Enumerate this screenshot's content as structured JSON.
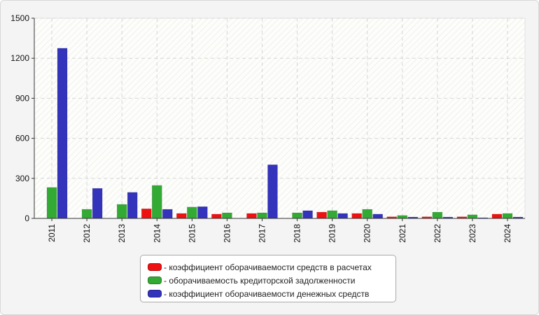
{
  "chart_data": {
    "type": "bar",
    "categories": [
      "2011",
      "2012",
      "2013",
      "2014",
      "2015",
      "2016",
      "2017",
      "2018",
      "2019",
      "2020",
      "2021",
      "2022",
      "2023",
      "2024"
    ],
    "series": [
      {
        "name": "- коэффициент оборачиваемости средств в расчетах",
        "color": "#ee1111",
        "values": [
          0,
          0,
          0,
          72,
          37,
          32,
          37,
          0,
          47,
          37,
          12,
          12,
          12,
          32
        ]
      },
      {
        "name": "- оборачиваемость кредиторской задолженности",
        "color": "#33aa33",
        "values": [
          232,
          68,
          105,
          247,
          85,
          42,
          42,
          42,
          58,
          68,
          22,
          47,
          27,
          37
        ]
      },
      {
        "name": "- коэффициент оборачиваемости денежных средств",
        "color": "#3333bb",
        "values": [
          1275,
          225,
          195,
          68,
          88,
          0,
          402,
          58,
          37,
          32,
          10,
          10,
          5,
          10
        ]
      }
    ],
    "yticks": [
      "0",
      "300",
      "600",
      "900",
      "1200",
      "1500"
    ],
    "ylim": [
      0,
      1500
    ],
    "grid": true,
    "legend": "bottom-center"
  }
}
